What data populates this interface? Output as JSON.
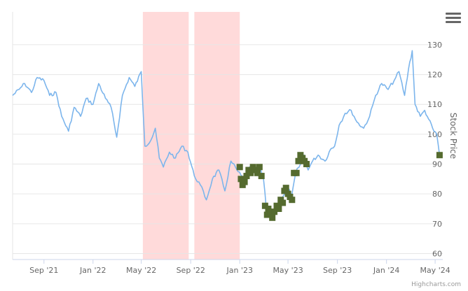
{
  "chart_data": {
    "type": "line",
    "title": "",
    "ylabel": "Stock Price",
    "xlabel": "",
    "ylim": [
      58,
      141
    ],
    "y_ticks": [
      60,
      70,
      80,
      90,
      100,
      110,
      120,
      130
    ],
    "x_range": [
      "2021-06-15",
      "2024-05-20"
    ],
    "x_ticks": [
      {
        "label": "Sep '21",
        "date": "2021-09-01"
      },
      {
        "label": "Jan '22",
        "date": "2022-01-01"
      },
      {
        "label": "May '22",
        "date": "2022-05-01"
      },
      {
        "label": "Sep '22",
        "date": "2022-09-01"
      },
      {
        "label": "Jan '23",
        "date": "2023-01-01"
      },
      {
        "label": "May '23",
        "date": "2023-05-01"
      },
      {
        "label": "Sep '23",
        "date": "2023-09-01"
      },
      {
        "label": "Jan '24",
        "date": "2024-01-01"
      },
      {
        "label": "May '24",
        "date": "2024-05-01"
      }
    ],
    "shaded_bands": [
      {
        "from": "2022-05-05",
        "to": "2022-08-27"
      },
      {
        "from": "2022-09-10",
        "to": "2023-01-01"
      }
    ],
    "grid": true,
    "y_axis_side": "right",
    "series": [
      {
        "type": "line",
        "color": "#7cb5ec",
        "points": [
          [
            "2021-06-15",
            113
          ],
          [
            "2021-07-01",
            115
          ],
          [
            "2021-07-15",
            117
          ],
          [
            "2021-08-01",
            114
          ],
          [
            "2021-08-15",
            119
          ],
          [
            "2021-09-01",
            118
          ],
          [
            "2021-09-15",
            113
          ],
          [
            "2021-10-01",
            114
          ],
          [
            "2021-10-15",
            106
          ],
          [
            "2021-11-01",
            101
          ],
          [
            "2021-11-15",
            109
          ],
          [
            "2021-12-01",
            106
          ],
          [
            "2021-12-15",
            112
          ],
          [
            "2022-01-01",
            110
          ],
          [
            "2022-01-15",
            117
          ],
          [
            "2022-02-01",
            112
          ],
          [
            "2022-02-15",
            109
          ],
          [
            "2022-03-01",
            99
          ],
          [
            "2022-03-15",
            113
          ],
          [
            "2022-04-01",
            119
          ],
          [
            "2022-04-15",
            116
          ],
          [
            "2022-05-01",
            121
          ],
          [
            "2022-05-10",
            96
          ],
          [
            "2022-05-25",
            98
          ],
          [
            "2022-06-05",
            102
          ],
          [
            "2022-06-15",
            92
          ],
          [
            "2022-06-25",
            89
          ],
          [
            "2022-07-10",
            94
          ],
          [
            "2022-07-25",
            92
          ],
          [
            "2022-08-10",
            96
          ],
          [
            "2022-08-25",
            94
          ],
          [
            "2022-09-10",
            86
          ],
          [
            "2022-09-25",
            83
          ],
          [
            "2022-10-10",
            78
          ],
          [
            "2022-10-25",
            85
          ],
          [
            "2022-11-10",
            88
          ],
          [
            "2022-11-25",
            81
          ],
          [
            "2022-12-10",
            91
          ],
          [
            "2022-12-25",
            88
          ],
          [
            "2023-01-10",
            85
          ],
          [
            "2023-01-25",
            89
          ],
          [
            "2023-02-10",
            88
          ],
          [
            "2023-02-20",
            89
          ],
          [
            "2023-03-01",
            85
          ],
          [
            "2023-03-08",
            75
          ],
          [
            "2023-03-20",
            73
          ],
          [
            "2023-04-01",
            75
          ],
          [
            "2023-04-15",
            78
          ],
          [
            "2023-05-01",
            82
          ],
          [
            "2023-05-10",
            79
          ],
          [
            "2023-05-20",
            87
          ],
          [
            "2023-06-01",
            90
          ],
          [
            "2023-06-10",
            93
          ],
          [
            "2023-06-20",
            88
          ],
          [
            "2023-07-01",
            91
          ],
          [
            "2023-07-15",
            93
          ],
          [
            "2023-08-01",
            91
          ],
          [
            "2023-08-15",
            95
          ],
          [
            "2023-08-25",
            96
          ],
          [
            "2023-09-05",
            103
          ],
          [
            "2023-09-20",
            107
          ],
          [
            "2023-10-05",
            108
          ],
          [
            "2023-10-20",
            104
          ],
          [
            "2023-11-05",
            102
          ],
          [
            "2023-11-20",
            106
          ],
          [
            "2023-12-05",
            113
          ],
          [
            "2023-12-20",
            117
          ],
          [
            "2024-01-05",
            115
          ],
          [
            "2024-01-20",
            118
          ],
          [
            "2024-02-01",
            121
          ],
          [
            "2024-02-15",
            113
          ],
          [
            "2024-02-25",
            122
          ],
          [
            "2024-03-05",
            128
          ],
          [
            "2024-03-12",
            110
          ],
          [
            "2024-03-25",
            106
          ],
          [
            "2024-04-05",
            108
          ],
          [
            "2024-04-15",
            105
          ],
          [
            "2024-04-28",
            101
          ],
          [
            "2024-05-05",
            100
          ],
          [
            "2024-05-12",
            93
          ]
        ]
      },
      {
        "type": "scatter",
        "color": "#556b2f",
        "points": [
          [
            "2023-01-01",
            89
          ],
          [
            "2023-01-04",
            85
          ],
          [
            "2023-01-08",
            83
          ],
          [
            "2023-01-13",
            84
          ],
          [
            "2023-01-18",
            86
          ],
          [
            "2023-01-23",
            88
          ],
          [
            "2023-01-28",
            87
          ],
          [
            "2023-02-03",
            89
          ],
          [
            "2023-02-08",
            88
          ],
          [
            "2023-02-14",
            87
          ],
          [
            "2023-02-19",
            89
          ],
          [
            "2023-02-24",
            86
          ],
          [
            "2023-03-05",
            76
          ],
          [
            "2023-03-10",
            73
          ],
          [
            "2023-03-13",
            75
          ],
          [
            "2023-03-18",
            74
          ],
          [
            "2023-03-23",
            72
          ],
          [
            "2023-03-28",
            74
          ],
          [
            "2023-04-03",
            76
          ],
          [
            "2023-04-08",
            75
          ],
          [
            "2023-04-13",
            78
          ],
          [
            "2023-04-18",
            77
          ],
          [
            "2023-04-22",
            81
          ],
          [
            "2023-04-26",
            82
          ],
          [
            "2023-05-01",
            80
          ],
          [
            "2023-05-06",
            79
          ],
          [
            "2023-05-11",
            78
          ],
          [
            "2023-05-16",
            87
          ],
          [
            "2023-05-22",
            87
          ],
          [
            "2023-05-27",
            91
          ],
          [
            "2023-06-01",
            93
          ],
          [
            "2023-06-06",
            92
          ],
          [
            "2023-06-11",
            91
          ],
          [
            "2023-06-16",
            90
          ],
          [
            "2024-05-12",
            93
          ]
        ]
      }
    ]
  },
  "credit": "Highcharts.com",
  "menu_icon": "hamburger-menu-icon"
}
